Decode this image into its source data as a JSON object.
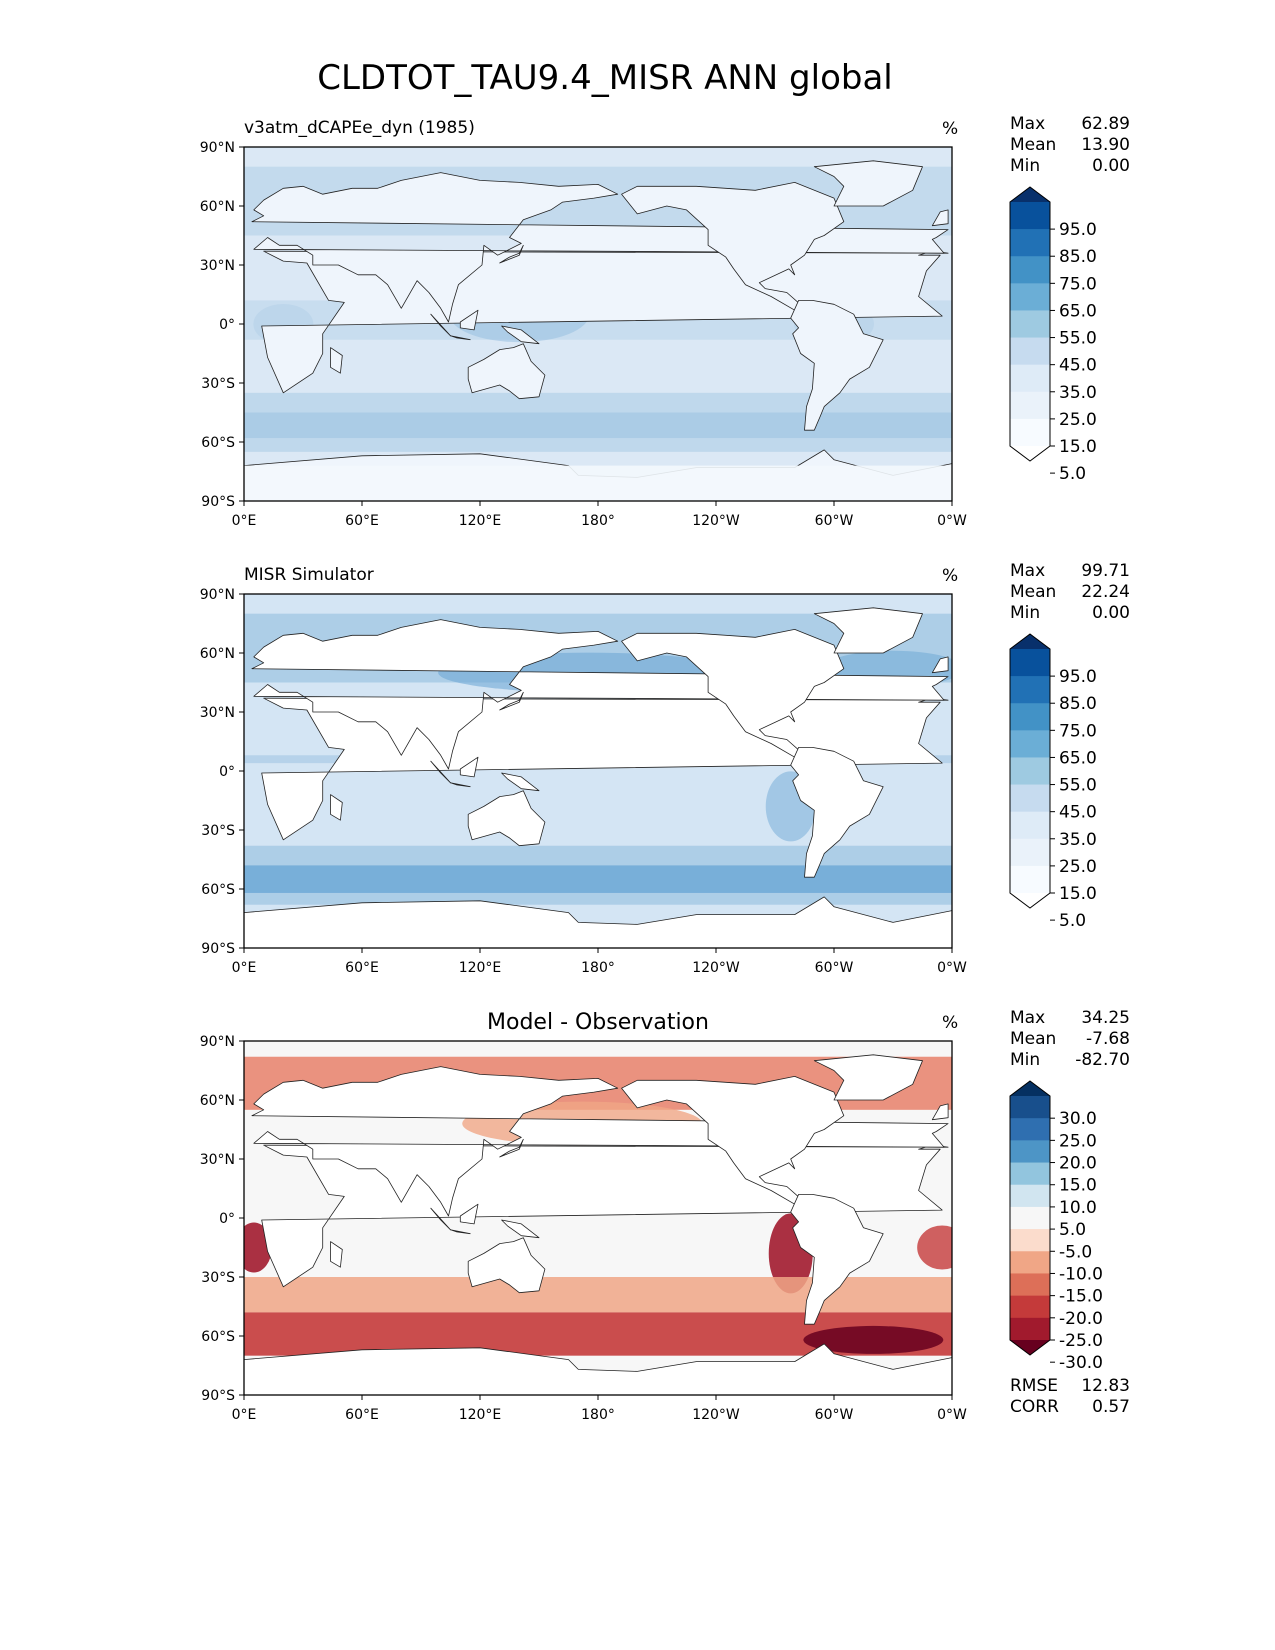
{
  "title": "CLDTOT_TAU9.4_MISR ANN global",
  "axes": {
    "yticks": [
      "90°N",
      "60°N",
      "30°N",
      "0°",
      "30°S",
      "60°S",
      "90°S"
    ],
    "xticks": [
      "0°E",
      "60°E",
      "120°E",
      "180°",
      "120°W",
      "60°W",
      "0°W"
    ]
  },
  "stat_labels": {
    "max": "Max",
    "mean": "Mean",
    "min": "Min",
    "rmse": "RMSE",
    "corr": "CORR"
  },
  "chart_data": [
    {
      "type": "heatmap",
      "title": "v3atm_dCAPEe_dyn (1985)",
      "units": "%",
      "lat_range": [
        -90,
        90
      ],
      "lon_range": [
        0,
        360
      ],
      "stats": {
        "max": "62.89",
        "mean": "13.90",
        "min": "0.00"
      },
      "colorbar": {
        "labels": [
          "95.0",
          "85.0",
          "75.0",
          "65.0",
          "55.0",
          "45.0",
          "35.0",
          "25.0",
          "15.0",
          "5.0"
        ],
        "colors": [
          "#08306b",
          "#08519c",
          "#2171b5",
          "#4292c6",
          "#6baed6",
          "#9ecae1",
          "#c6dbef",
          "#deebf7",
          "#eaf2fa",
          "#f7fbff",
          "#ffffff"
        ]
      },
      "colors": {
        "ocean": "#dbe8f5",
        "land": "#eff5fc",
        "band": "#b8d3ea",
        "deep": "#98c0e0"
      }
    },
    {
      "type": "heatmap",
      "title": "MISR Simulator",
      "units": "%",
      "lat_range": [
        -90,
        90
      ],
      "lon_range": [
        0,
        360
      ],
      "stats": {
        "max": "99.71",
        "mean": "22.24",
        "min": "0.00"
      },
      "colorbar": {
        "labels": [
          "95.0",
          "85.0",
          "75.0",
          "65.0",
          "55.0",
          "45.0",
          "35.0",
          "25.0",
          "15.0",
          "5.0"
        ],
        "colors": [
          "#08306b",
          "#08519c",
          "#2171b5",
          "#4292c6",
          "#6baed6",
          "#9ecae1",
          "#c6dbef",
          "#deebf7",
          "#eaf2fa",
          "#f7fbff",
          "#ffffff"
        ]
      },
      "colors": {
        "ocean": "#d4e5f4",
        "land": "#ffffff",
        "band": "#a9cbe6",
        "deep": "#6fa9d6"
      }
    },
    {
      "type": "heatmap",
      "title": "Model - Observation",
      "units": "%",
      "lat_range": [
        -90,
        90
      ],
      "lon_range": [
        0,
        360
      ],
      "stats": {
        "max": "34.25",
        "mean": "-7.68",
        "min": "-82.70",
        "rmse": "12.83",
        "corr": "0.57"
      },
      "colorbar": {
        "labels": [
          "30.0",
          "25.0",
          "20.0",
          "15.0",
          "10.0",
          "5.0",
          "-5.0",
          "-10.0",
          "-15.0",
          "-20.0",
          "-25.0",
          "-30.0"
        ],
        "colors": [
          "#053061",
          "#184f8c",
          "#2f6fb0",
          "#4d95c6",
          "#92c5de",
          "#d1e5f0",
          "#f7f7f7",
          "#fbdccc",
          "#f0a686",
          "#dd6f58",
          "#c43a3a",
          "#a11a2d",
          "#67001f"
        ]
      },
      "colors": {
        "ocean": "#f7f7f7",
        "land": "#ffffff",
        "band": "#d9534a",
        "deep": "#9c1b2b"
      }
    }
  ]
}
